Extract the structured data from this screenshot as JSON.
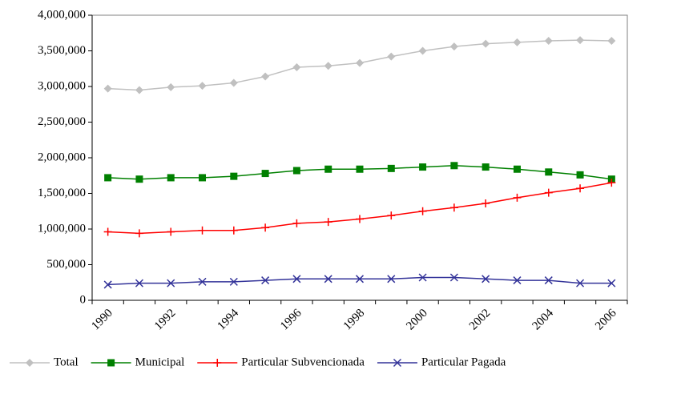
{
  "chart_data": {
    "type": "line",
    "categories": [
      "1990",
      null,
      "1992",
      null,
      "1994",
      null,
      "1996",
      null,
      "1998",
      null,
      "2000",
      null,
      "2002",
      null,
      "2004",
      null,
      "2006"
    ],
    "series": [
      {
        "name": "Total",
        "color": "#c0c0c0",
        "marker": "diamond",
        "values": [
          2970000,
          2950000,
          2990000,
          3010000,
          3050000,
          3140000,
          3270000,
          3290000,
          3330000,
          3420000,
          3500000,
          3560000,
          3600000,
          3620000,
          3640000,
          3650000,
          3640000
        ]
      },
      {
        "name": "Municipal",
        "color": "#008000",
        "marker": "square",
        "values": [
          1720000,
          1700000,
          1720000,
          1720000,
          1740000,
          1780000,
          1820000,
          1840000,
          1840000,
          1850000,
          1870000,
          1890000,
          1870000,
          1840000,
          1800000,
          1760000,
          1700000
        ]
      },
      {
        "name": "Particular Subvencionada",
        "color": "#ff0000",
        "marker": "plus",
        "values": [
          960000,
          940000,
          960000,
          980000,
          980000,
          1020000,
          1080000,
          1100000,
          1140000,
          1190000,
          1250000,
          1300000,
          1360000,
          1440000,
          1510000,
          1570000,
          1650000
        ]
      },
      {
        "name": "Particular Pagada",
        "color": "#333399",
        "marker": "cross",
        "values": [
          220000,
          240000,
          240000,
          260000,
          260000,
          280000,
          300000,
          300000,
          300000,
          300000,
          320000,
          320000,
          300000,
          280000,
          280000,
          240000,
          240000
        ]
      }
    ],
    "ylim": [
      0,
      4000000
    ],
    "yticks": [
      0,
      {
        "value": 500000,
        "label": "500,000"
      },
      {
        "value": 1000000,
        "label": "1,000,000"
      },
      {
        "value": 1500000,
        "label": "1,500,000"
      },
      {
        "value": 2000000,
        "label": "2,000,000"
      },
      {
        "value": 2500000,
        "label": "2,500,000"
      },
      {
        "value": 3000000,
        "label": "3,000,000"
      },
      {
        "value": 3500000,
        "label": "3,500,000"
      },
      {
        "value": 4000000,
        "label": "4,000,000"
      }
    ],
    "legend": "bottom"
  }
}
